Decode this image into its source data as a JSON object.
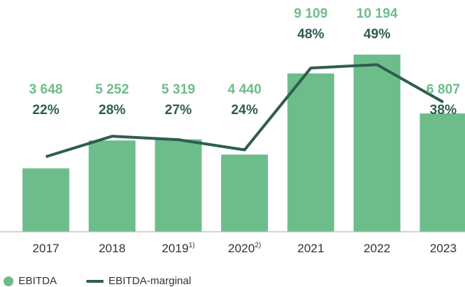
{
  "chart_data": {
    "type": "bar-line",
    "categories": [
      "2017",
      "2018",
      "2019",
      "2020",
      "2021",
      "2022",
      "2023"
    ],
    "category_footnotes": [
      null,
      null,
      "1)",
      "2)",
      null,
      null,
      null
    ],
    "series": [
      {
        "name": "EBITDA",
        "color": "#6dbd8b",
        "values": [
          3648,
          5252,
          5319,
          4440,
          9109,
          10194,
          6807
        ],
        "value_labels": [
          "3 648",
          "5 252",
          "5 319",
          "4 440",
          "9 109",
          "10 194",
          "6 807"
        ]
      },
      {
        "name": "EBITDA-marginal",
        "color": "#2f5d50",
        "axis": "y2",
        "values": [
          22,
          28,
          27,
          24,
          48,
          49,
          38
        ],
        "value_labels": [
          "22%",
          "28%",
          "27%",
          "24%",
          "48%",
          "49%",
          "38%"
        ]
      }
    ],
    "ylim": [
      0,
      10400
    ],
    "y2lim": [
      0,
      53
    ]
  }
}
